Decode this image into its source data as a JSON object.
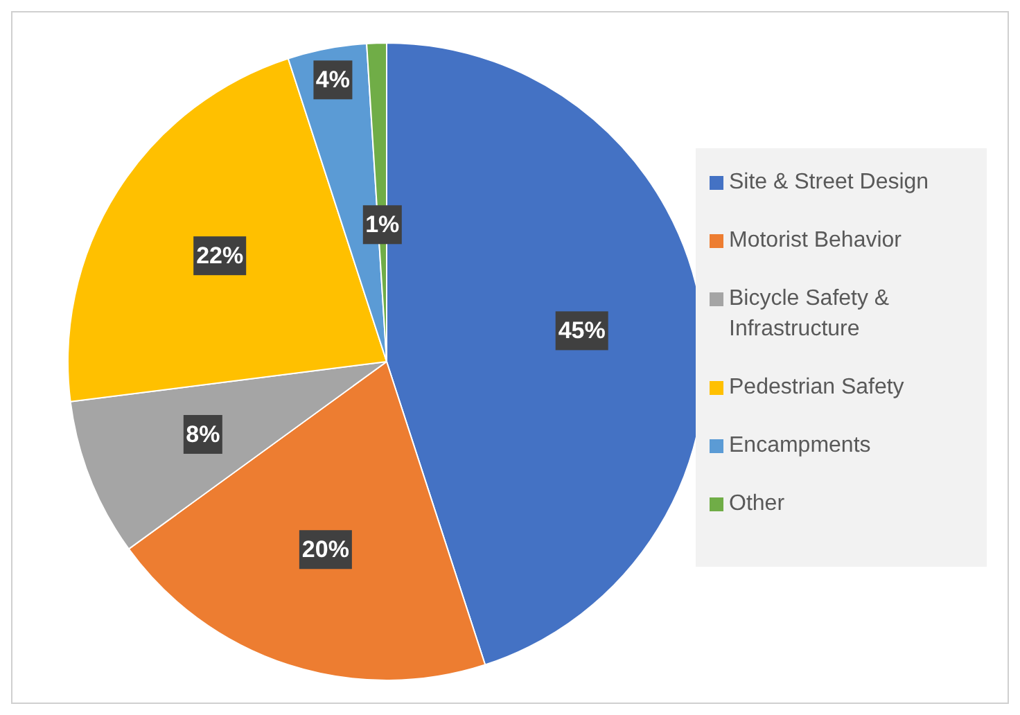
{
  "chart_data": {
    "type": "pie",
    "categories": [
      "Site & Street Design",
      "Motorist Behavior",
      "Bicycle Safety & Infrastructure",
      "Pedestrian Safety",
      "Encampments",
      "Other"
    ],
    "values": [
      45,
      20,
      8,
      22,
      4,
      1
    ],
    "colors": [
      "#4472c4",
      "#ed7d31",
      "#a5a5a5",
      "#ffc000",
      "#5b9bd5",
      "#70ad47"
    ],
    "value_labels": [
      "45%",
      "20%",
      "8%",
      "22%",
      "4%",
      "1%"
    ],
    "legend": "right"
  }
}
